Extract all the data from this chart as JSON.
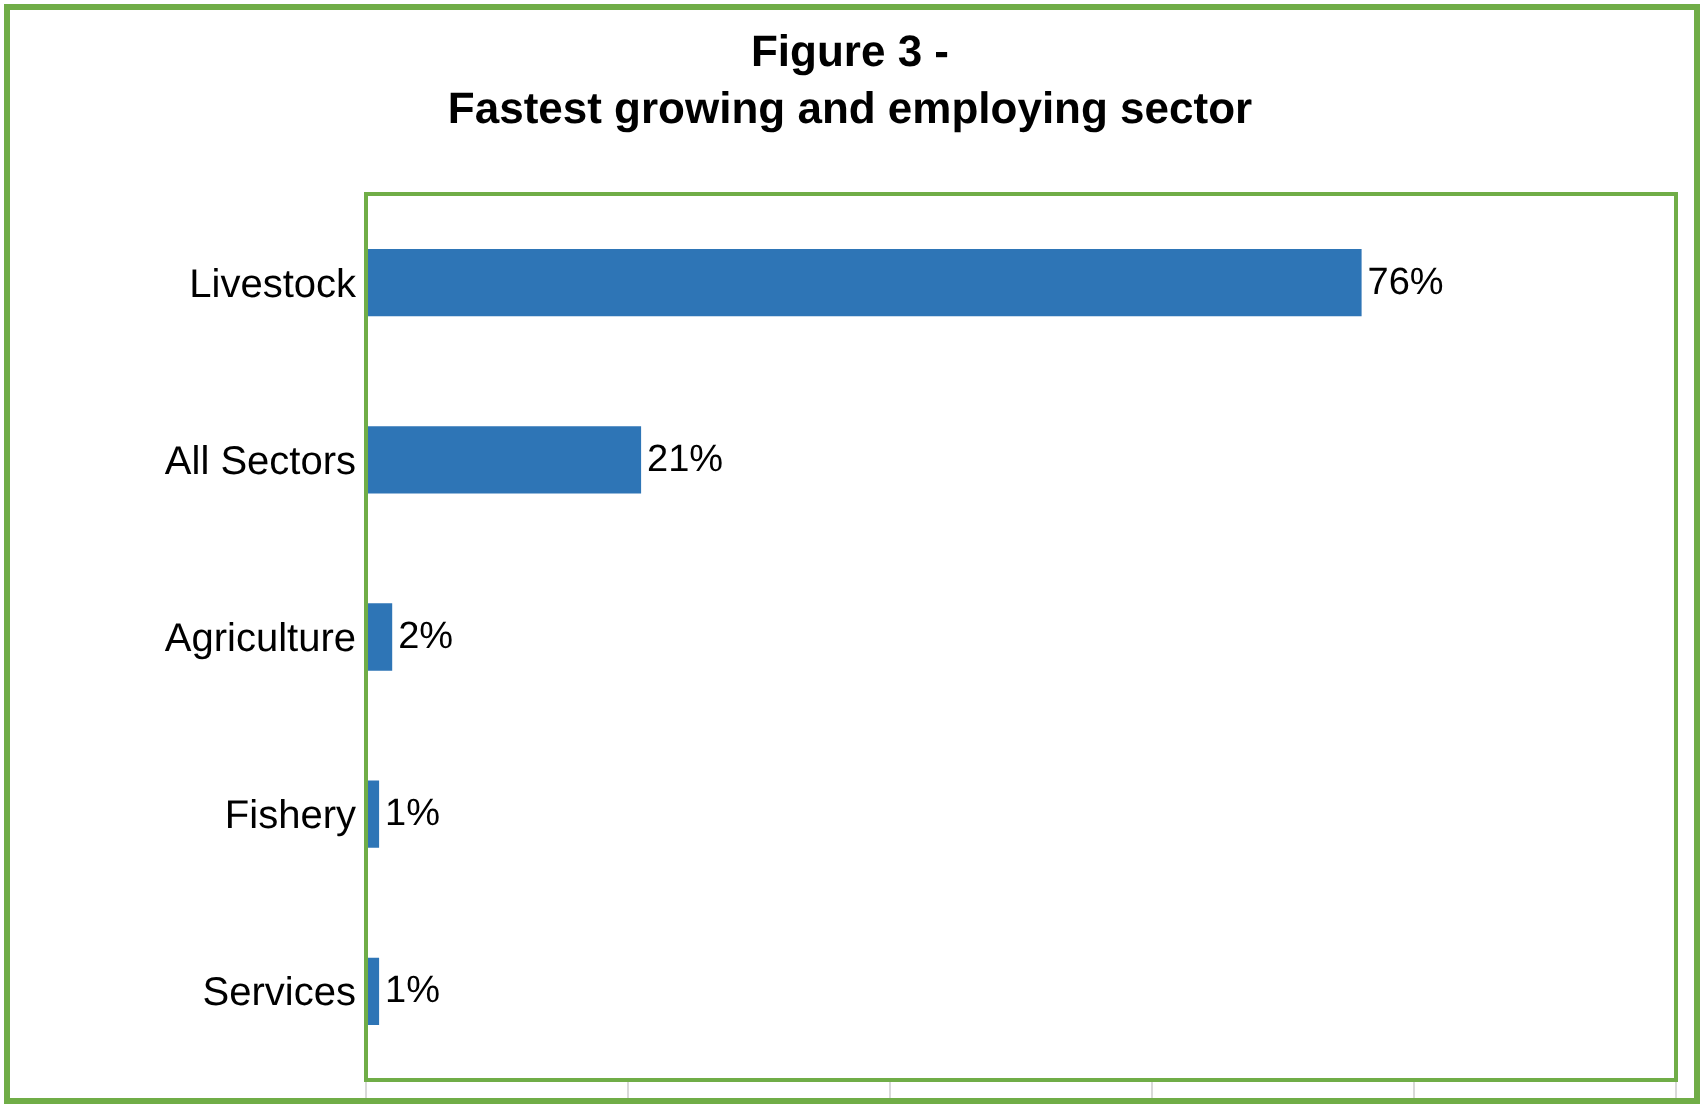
{
  "chart_data": {
    "type": "bar",
    "orientation": "horizontal",
    "title": "Figure 3 -\nFastest growing and employing sector",
    "categories": [
      "Livestock",
      "All Sectors",
      "Agriculture",
      "Fishery",
      "Services"
    ],
    "values": [
      76,
      21,
      2,
      1,
      1
    ],
    "value_labels": [
      "76%",
      "21%",
      "2%",
      "1%",
      "1%"
    ],
    "color": "#2e75b6",
    "xlim": [
      0,
      100
    ],
    "xticks": [
      {
        "value": 0,
        "label": null
      },
      {
        "value": 20,
        "label": null
      },
      {
        "value": 40,
        "label": null
      },
      {
        "value": 60,
        "label": null
      },
      {
        "value": 80,
        "label": null
      },
      {
        "value": 100,
        "label": null
      }
    ],
    "tick_labels": "y"
  }
}
